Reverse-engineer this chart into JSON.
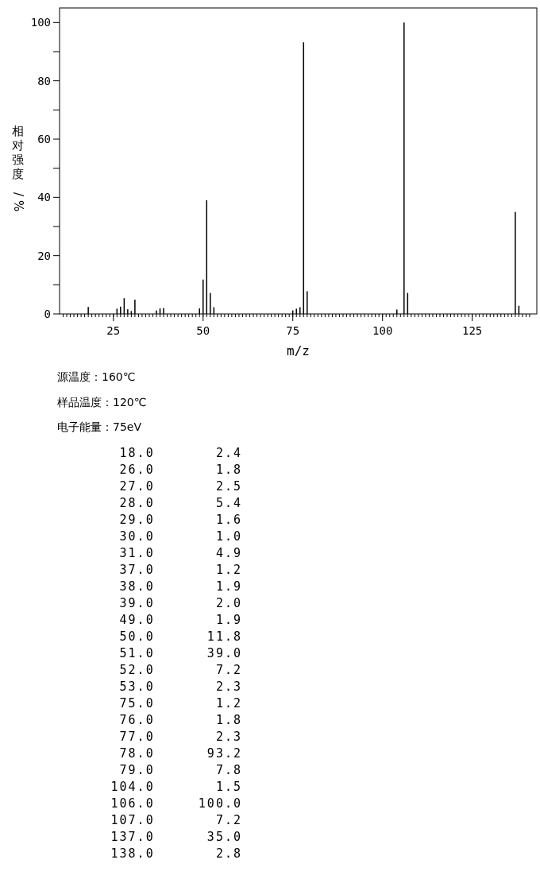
{
  "chart_data": [
    {
      "type": "bar",
      "xlabel": "m/z",
      "ylabel": "相对强度/%",
      "x": [
        18,
        26,
        27,
        28,
        29,
        30,
        31,
        37,
        38,
        39,
        49,
        50,
        51,
        52,
        53,
        75,
        76,
        77,
        78,
        79,
        104,
        106,
        107,
        137,
        138
      ],
      "values": [
        2.4,
        1.8,
        2.5,
        5.4,
        1.6,
        1.0,
        4.9,
        1.2,
        1.9,
        2.0,
        1.9,
        11.8,
        39.0,
        7.2,
        2.3,
        1.2,
        1.8,
        2.3,
        93.2,
        7.8,
        1.5,
        100.0,
        7.2,
        35.0,
        2.8
      ],
      "color": "#000000",
      "xlim": [
        10,
        143
      ],
      "ylim": [
        0,
        105
      ],
      "xticks": [
        25,
        50,
        75,
        100,
        125
      ],
      "yticks": [
        0,
        {
          "value": 10,
          "label": null
        },
        20,
        {
          "value": 30,
          "label": null
        },
        40,
        {
          "value": 50,
          "label": null
        },
        60,
        {
          "value": 70,
          "label": null
        },
        80,
        {
          "value": 90,
          "label": null
        },
        100
      ],
      "annotations": [
        "源温度：160℃",
        "样品温度：120℃",
        "电子能量：75eV"
      ]
    },
    {
      "type": "other",
      "annotations": [
        "18.0       2.4",
        "26.0       1.8",
        "27.0       2.5",
        "28.0       5.4",
        "29.0       1.6",
        "30.0       1.0",
        "31.0       4.9",
        "37.0       1.2",
        "38.0       1.9",
        "39.0       2.0",
        "49.0       1.9",
        "50.0      11.8",
        "51.0      39.0",
        "52.0       7.2",
        "53.0       2.3",
        "75.0       1.2",
        "76.0       1.8",
        "77.0       2.3",
        "78.0      93.2",
        "79.0       7.8",
        "104.0       1.5",
        "106.0     100.0",
        "107.0       7.2",
        "137.0      35.0",
        "138.0       2.8"
      ]
    }
  ]
}
